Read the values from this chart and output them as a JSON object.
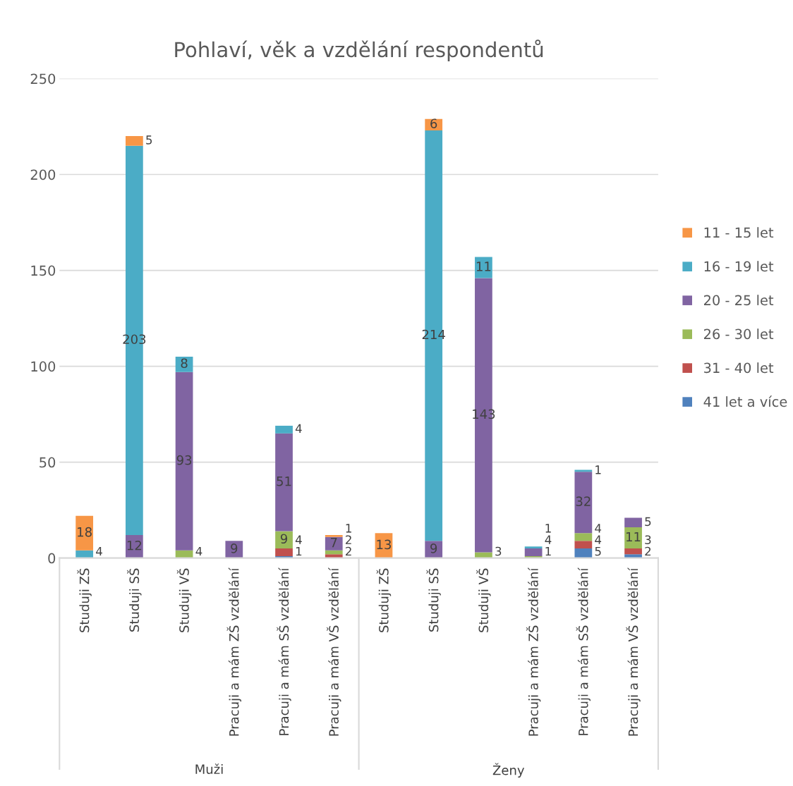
{
  "chart_data": {
    "type": "bar",
    "title": "Pohlaví, věk a vzdělání respondentů",
    "stacked": true,
    "categories": [
      "Studuji ZŠ",
      "Studuji SŠ",
      "Studuji VŠ",
      "Pracuji a mám ZŠ vzdělání",
      "Pracuji a mám SŠ vzdělání",
      "Pracuji a mám VŠ vzdělání",
      "Studuji ZŠ",
      "Studuji SŠ",
      "Studuji VŠ",
      "Pracuji a mám ZŠ vzdělání",
      "Pracuji a mám SŠ vzdělání",
      "Pracuji a mám VŠ vzdělání"
    ],
    "series": [
      {
        "name": "41 let a více",
        "color": "#4f81bd",
        "values": [
          null,
          null,
          null,
          null,
          1,
          null,
          null,
          null,
          null,
          null,
          5,
          2
        ]
      },
      {
        "name": "31 - 40 let",
        "color": "#c0504d",
        "values": [
          null,
          null,
          null,
          null,
          4,
          2,
          null,
          null,
          null,
          null,
          4,
          3
        ]
      },
      {
        "name": "26 - 30 let",
        "color": "#9bbb59",
        "values": [
          null,
          null,
          4,
          null,
          9,
          2,
          null,
          null,
          3,
          1,
          4,
          11
        ]
      },
      {
        "name": "20 - 25 let",
        "color": "#8064a2",
        "values": [
          null,
          12,
          93,
          9,
          51,
          7,
          null,
          9,
          143,
          4,
          32,
          5
        ]
      },
      {
        "name": "16 - 19 let",
        "color": "#4bacc6",
        "values": [
          4,
          203,
          8,
          null,
          4,
          null,
          null,
          214,
          11,
          1,
          1,
          null
        ]
      },
      {
        "name": "11 - 15 let",
        "color": "#f79646",
        "values": [
          18,
          5,
          null,
          null,
          null,
          1,
          13,
          6,
          null,
          null,
          null,
          null
        ]
      }
    ],
    "ylim": [
      0,
      250
    ],
    "yticks": [
      0,
      50,
      100,
      150,
      200,
      250
    ],
    "grid": "y",
    "legend": "right",
    "data_labels": true,
    "annotations": [
      "Muži",
      "Ženy"
    ]
  }
}
